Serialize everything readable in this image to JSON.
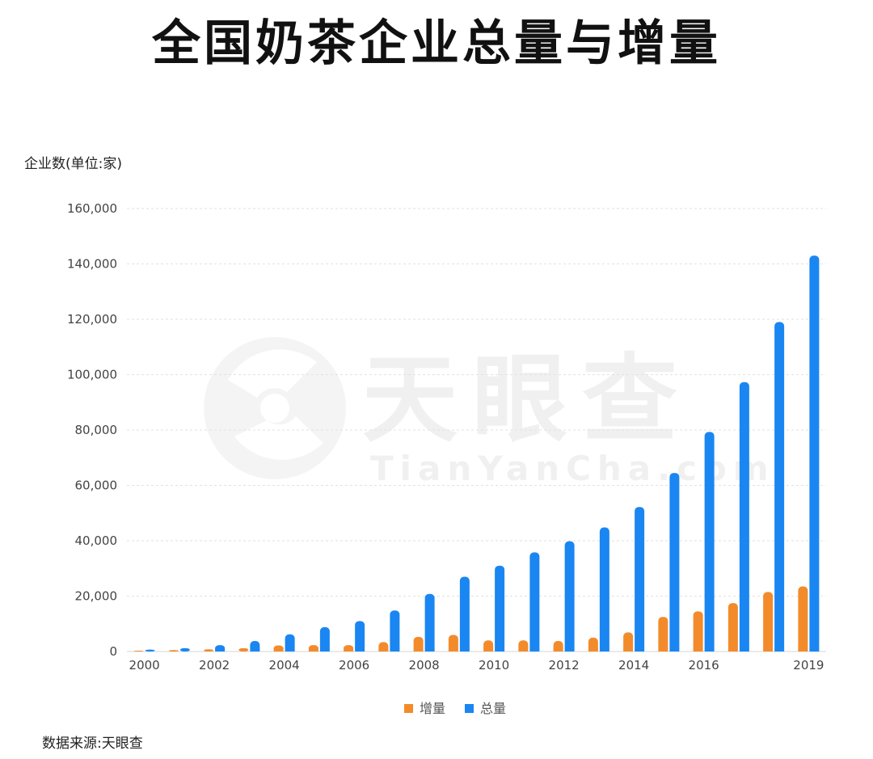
{
  "title": "全国奶茶企业总量与增量",
  "source": "数据来源:天眼查",
  "watermark": {
    "brand": "天眼查",
    "url": "TianYanCha.com"
  },
  "chart_data": {
    "type": "bar",
    "title": "全国奶茶企业总量与增量",
    "ylabel": "企业数(单位:家)",
    "xlabel": "",
    "ylim": [
      0,
      160000
    ],
    "yticks": [
      0,
      20000,
      40000,
      60000,
      80000,
      100000,
      120000,
      140000,
      160000
    ],
    "ytick_labels": [
      "0",
      "20,000",
      "40,000",
      "60,000",
      "80,000",
      "100,000",
      "120,000",
      "140,000",
      "160,000"
    ],
    "categories": [
      "2000",
      "2001",
      "2002",
      "2003",
      "2004",
      "2005",
      "2006",
      "2007",
      "2008",
      "2009",
      "2010",
      "2011",
      "2012",
      "2013",
      "2014",
      "2015",
      "2016",
      "2017",
      "2018",
      "2019"
    ],
    "xtick_labels": [
      "2000",
      "2002",
      "2004",
      "2006",
      "2008",
      "2010",
      "2012",
      "2014",
      "2016",
      "2019"
    ],
    "grid": true,
    "legend_position": "bottom-center",
    "series": [
      {
        "name": "增量",
        "color": "#f38b2b",
        "values": [
          300,
          500,
          800,
          1200,
          2200,
          2300,
          2300,
          3400,
          5300,
          6000,
          4000,
          4000,
          3800,
          5000,
          6900,
          12500,
          14500,
          17500,
          21500,
          23500
        ]
      },
      {
        "name": "总量",
        "color": "#1a86f2",
        "values": [
          700,
          1200,
          2300,
          3800,
          6200,
          8800,
          11000,
          14800,
          20800,
          27000,
          31000,
          35800,
          39800,
          44800,
          52200,
          64500,
          79300,
          97300,
          119000,
          143000
        ]
      }
    ]
  }
}
